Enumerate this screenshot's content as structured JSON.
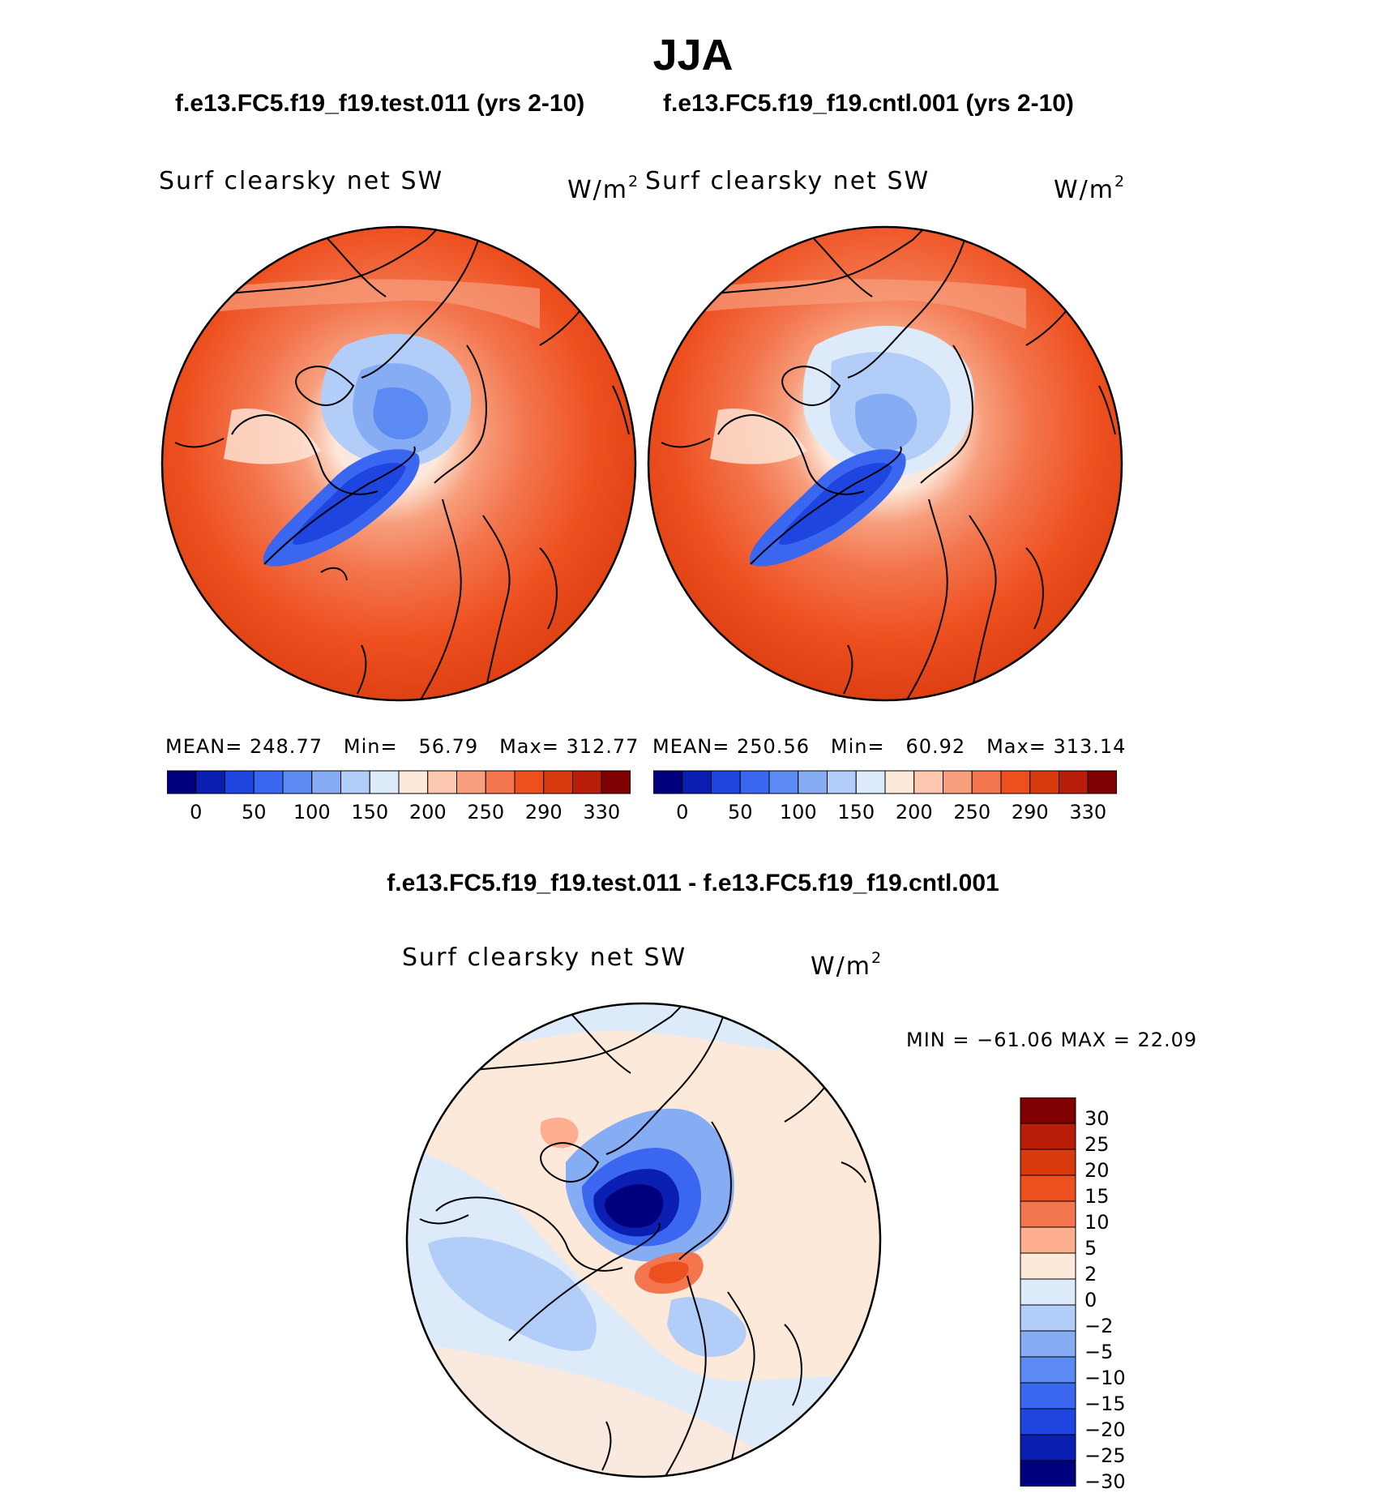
{
  "title": "JJA",
  "panels": [
    {
      "case_title": "f.e13.FC5.f19_f19.test.011 (yrs 2-10)",
      "variable": "Surf clearsky net SW",
      "units_base": "W/m",
      "units_exp": "2",
      "stats": {
        "mean_label": "MEAN=",
        "mean": "248.77",
        "min_label": "Min=",
        "min": "56.79",
        "max_label": "Max=",
        "max": "312.77"
      }
    },
    {
      "case_title": "f.e13.FC5.f19_f19.cntl.001 (yrs 2-10)",
      "variable": "Surf clearsky net SW",
      "units_base": "W/m",
      "units_exp": "2",
      "stats": {
        "mean_label": "MEAN=",
        "mean": "250.56",
        "min_label": "Min=",
        "min": "60.92",
        "max_label": "Max=",
        "max": "313.14"
      }
    }
  ],
  "abs_colorbar": {
    "colors": [
      "#00007f",
      "#0a1fb2",
      "#1f45e0",
      "#3a66f0",
      "#5b8af2",
      "#86acf4",
      "#b2cdf7",
      "#dceafa",
      "#fde9da",
      "#fcc7ae",
      "#f79e7d",
      "#f3764e",
      "#ee4f1f",
      "#d83a0e",
      "#b71d09",
      "#7f0000"
    ],
    "tick_labels": [
      "0",
      "50",
      "100",
      "150",
      "200",
      "250",
      "290",
      "330"
    ]
  },
  "difference": {
    "title": "f.e13.FC5.f19_f19.test.011 - f.e13.FC5.f19_f19.cntl.001",
    "variable": "Surf clearsky net SW",
    "units_base": "W/m",
    "units_exp": "2",
    "minmax": "MIN = −61.06 MAX =  22.09",
    "colorbar": {
      "colors_top_to_bottom": [
        "#7f0000",
        "#b71d09",
        "#d83a0e",
        "#ee4f1f",
        "#f3764e",
        "#fcae8e",
        "#fde9da",
        "#dceafa",
        "#b2cdf7",
        "#86acf4",
        "#5b8af2",
        "#3a66f0",
        "#1f45e0",
        "#0a1fb2",
        "#00007f"
      ],
      "tick_labels": [
        "30",
        "25",
        "20",
        "15",
        "10",
        "5",
        "2",
        "0",
        "−2",
        "−5",
        "−10",
        "−15",
        "−20",
        "−25",
        "−30"
      ]
    }
  }
}
